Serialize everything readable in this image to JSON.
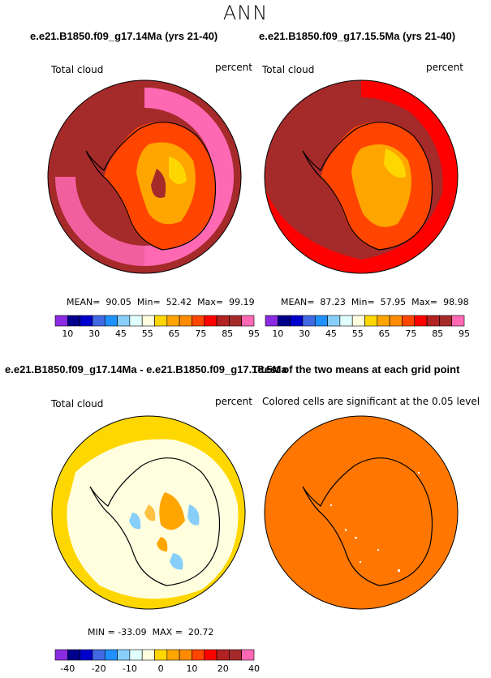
{
  "suptitle": "ANN",
  "panels": [
    {
      "title": "e.e21.B1850.f09_g17.14Ma (yrs 21-40)",
      "variable_label": "Total cloud",
      "units_label": "percent",
      "stats": {
        "mean_label": "MEAN=",
        "mean": "90.05",
        "min_label": "Min=",
        "min": "52.42",
        "max_label": "Max=",
        "max": "99.19"
      }
    },
    {
      "title": "e.e21.B1850.f09_g17.15.5Ma (yrs 21-40)",
      "variable_label": "Total cloud",
      "units_label": "percent",
      "stats": {
        "mean_label": "MEAN=",
        "mean": "87.23",
        "min_label": "Min=",
        "min": "57.95",
        "max_label": "Max=",
        "max": "98.98"
      }
    },
    {
      "title": "e.e21.B1850.f09_g17.14Ma - e.e21.B1850.f09_g17.15.5Ma",
      "variable_label": "Total cloud",
      "units_label": "percent",
      "stats": {
        "min_label": "MIN =",
        "min": "-33.09",
        "max_label": "MAX =",
        "max": "20.72"
      }
    },
    {
      "title": "T-test of the two means at each grid point",
      "subtitle": "Colored cells are significant at the 0.05 level"
    }
  ],
  "colorbar_abs": {
    "colors": [
      "#8a2be2",
      "#00008b",
      "#0000cd",
      "#4169e1",
      "#1e90ff",
      "#87cefa",
      "#e0ffff",
      "#ffffe0",
      "#ffd700",
      "#ffa500",
      "#ff8c00",
      "#ff4500",
      "#ff0000",
      "#b22222",
      "#a52a2a",
      "#ff69b4"
    ],
    "tick_labels": [
      "10",
      "30",
      "45",
      "55",
      "65",
      "75",
      "85",
      "95"
    ]
  },
  "colorbar_diff": {
    "colors": [
      "#8a2be2",
      "#00008b",
      "#0000cd",
      "#4169e1",
      "#1e90ff",
      "#87cefa",
      "#e0ffff",
      "#ffffe0",
      "#ffd700",
      "#ffa500",
      "#ff8c00",
      "#ff4500",
      "#ff0000",
      "#b22222",
      "#a52a2a",
      "#ff69b4"
    ],
    "tick_labels": [
      "-40",
      "-20",
      "-10",
      "0",
      "10",
      "20",
      "40"
    ]
  },
  "map_colors": {
    "p1_bg": "#a52a2a",
    "p1_ring": "#ff69b4",
    "p1_land": "#ff4500",
    "p1_land2": "#ffa500",
    "p1_land3": "#ffd700",
    "p2_bg": "#a52a2a",
    "p2_ring": "#ff0000",
    "p2_land": "#ff4500",
    "p2_land2": "#ffa500",
    "p2_land3": "#ffd700",
    "p3_bg": "#ffd700",
    "p3_inner": "#ffffe0",
    "p3_pos": "#ffa500",
    "p3_neg": "#87cefa",
    "p4_bg": "#ff7700"
  }
}
